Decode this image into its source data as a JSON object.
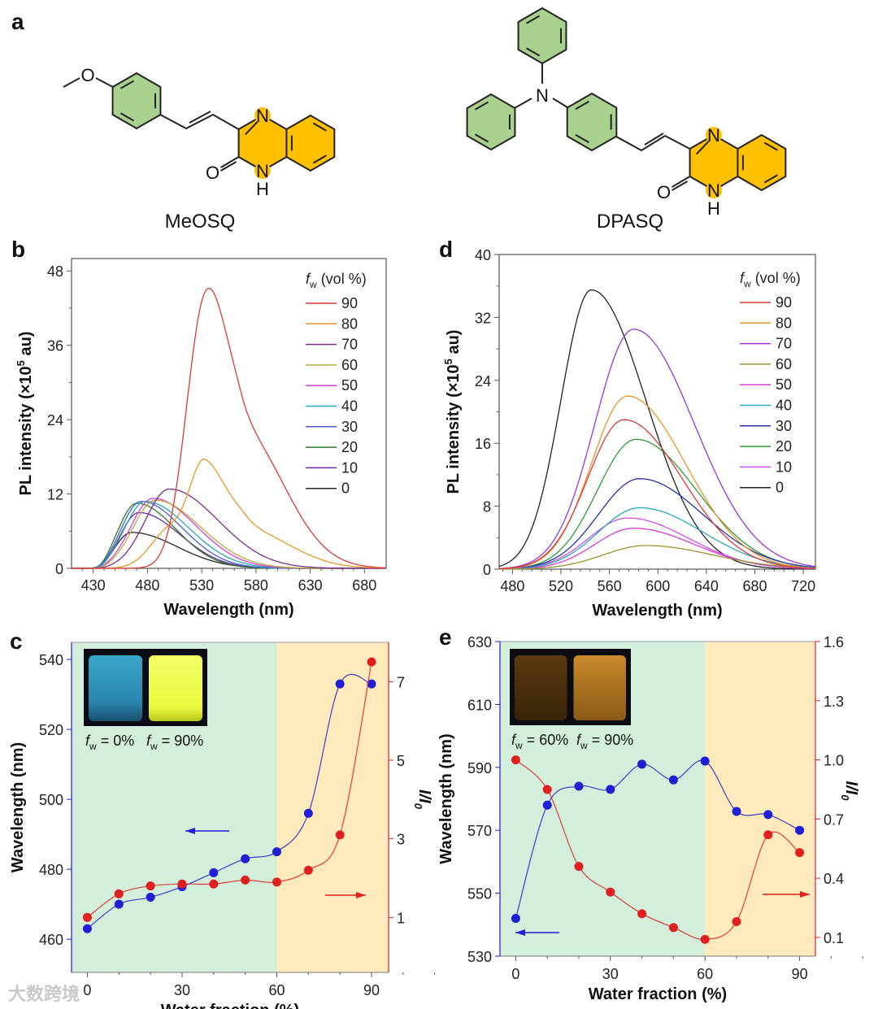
{
  "panels": {
    "a": "a",
    "b": "b",
    "c": "c",
    "d": "d",
    "e": "e"
  },
  "structures": {
    "left_name": "MeOSQ",
    "right_name": "DPASQ",
    "atoms": {
      "N": "N",
      "O": "O",
      "H": "H"
    },
    "colors": {
      "phenyl": "#a9d18e",
      "quinoxalinone": "#ffc000"
    }
  },
  "watermark": "大数跨境",
  "chart_data": [
    {
      "id": "b",
      "type": "line",
      "xlabel": "Wavelength (nm)",
      "ylabel": {
        "pre": "PL intensity (×10",
        "sup": "5",
        "post": " au)"
      },
      "xlim": [
        410,
        700
      ],
      "ylim": [
        0,
        50
      ],
      "xticks": [
        430,
        480,
        530,
        580,
        630,
        680
      ],
      "yticks": [
        0,
        12,
        24,
        36,
        48
      ],
      "legend": {
        "title_f": "f",
        "title_sub": "w",
        "title_rest": " (vol %)",
        "placement": "top-right"
      },
      "series": [
        {
          "name": "90",
          "color": "#d93a3a",
          "components": [
            [
              532,
              39,
              17,
              18
            ],
            [
              566,
              22,
              20,
              40
            ]
          ]
        },
        {
          "name": "80",
          "color": "#e8962a",
          "components": [
            [
              533,
              13.5,
              13,
              20
            ],
            [
              502,
              6.5,
              18,
              28
            ],
            [
              572,
              6,
              18,
              40
            ]
          ]
        },
        {
          "name": "70",
          "color": "#7a2e8a",
          "components": [
            [
              500,
              12.8,
              22,
              45
            ]
          ]
        },
        {
          "name": "60",
          "color": "#b5ae3e",
          "components": [
            [
              487,
              11,
              20,
              42
            ]
          ]
        },
        {
          "name": "50",
          "color": "#d63cd6",
          "components": [
            [
              485,
              11.3,
              20,
              40
            ]
          ]
        },
        {
          "name": "40",
          "color": "#25aabb",
          "components": [
            [
              478,
              10.8,
              19,
              40
            ]
          ]
        },
        {
          "name": "30",
          "color": "#4a5fd6",
          "components": [
            [
              474,
              10.8,
              18,
              38
            ]
          ]
        },
        {
          "name": "20",
          "color": "#2a7a2a",
          "components": [
            [
              470,
              10.5,
              17,
              36
            ]
          ]
        },
        {
          "name": "10",
          "color": "#6a2aa6",
          "components": [
            [
              472,
              9,
              17,
              38
            ]
          ]
        },
        {
          "name": "0",
          "color": "#222222",
          "components": [
            [
              465,
              5.8,
              15,
              42
            ]
          ]
        }
      ]
    },
    {
      "id": "d",
      "type": "line",
      "xlabel": "Wavelength (nm)",
      "ylabel": {
        "pre": "PL intensity (×10",
        "sup": "5",
        "post": " au)"
      },
      "xlim": [
        469,
        730
      ],
      "ylim": [
        0,
        40
      ],
      "xticks": [
        480,
        520,
        560,
        600,
        640,
        680,
        720
      ],
      "yticks": [
        0,
        8,
        16,
        24,
        32,
        40
      ],
      "legend": {
        "title_f": "f",
        "title_sub": "w",
        "title_rest": " (vol %)",
        "placement": "top-right"
      },
      "series": [
        {
          "name": "90",
          "color": "#d93a3a",
          "components": [
            [
              572,
              19,
              30,
              48
            ]
          ]
        },
        {
          "name": "80",
          "color": "#e8962a",
          "components": [
            [
              575,
              22,
              30,
              48
            ]
          ]
        },
        {
          "name": "70",
          "color": "#9a35d0",
          "components": [
            [
              580,
              30.5,
              32,
              50
            ]
          ]
        },
        {
          "name": "60",
          "color": "#9a9230",
          "components": [
            [
              590,
              3,
              35,
              55
            ]
          ]
        },
        {
          "name": "50",
          "color": "#d63cd6",
          "components": [
            [
              580,
              5.2,
              32,
              50
            ]
          ]
        },
        {
          "name": "40",
          "color": "#25aabb",
          "components": [
            [
              585,
              7.8,
              34,
              52
            ]
          ]
        },
        {
          "name": "30",
          "color": "#2432a8",
          "components": [
            [
              585,
              11.5,
              34,
              52
            ]
          ]
        },
        {
          "name": "20",
          "color": "#2f9a3a",
          "components": [
            [
              582,
              16.5,
              32,
              50
            ]
          ]
        },
        {
          "name": "10",
          "color": "#d44ee6",
          "components": [
            [
              575,
              6.5,
              32,
              50
            ]
          ]
        },
        {
          "name": "0",
          "color": "#222222",
          "components": [
            [
              545,
              35.5,
              25,
              45
            ]
          ]
        }
      ]
    },
    {
      "id": "c",
      "type": "scatter",
      "xlabel": "Water fraction (%)",
      "ylabel_left": "Wavelength (nm)",
      "ylabel_right": {
        "main": "I/I",
        "sub": "0"
      },
      "xlim": [
        -5,
        95.4
      ],
      "ylim_left": [
        450.5,
        544.9
      ],
      "ylim_right": [
        -0.4,
        8.0
      ],
      "xticks": [
        0,
        30,
        60,
        90
      ],
      "yticks_left": [
        460,
        480,
        500,
        520,
        540
      ],
      "yticks_right": [
        1,
        3,
        5,
        7
      ],
      "shade_split": 60,
      "colors": {
        "left": "#1f1fd6",
        "right": "#e01f1f",
        "shade_low": "#d3eedb",
        "shade_high": "#feeabb"
      },
      "x": [
        0,
        10,
        20,
        30,
        40,
        50,
        60,
        70,
        80,
        90
      ],
      "series": [
        {
          "name": "Wavelength",
          "axis": "left",
          "values": [
            463,
            470,
            472,
            475,
            479,
            483,
            485,
            496,
            533,
            533
          ]
        },
        {
          "name": "I/I0",
          "axis": "right",
          "values": [
            1.0,
            1.6,
            1.8,
            1.85,
            1.85,
            1.95,
            1.9,
            2.2,
            3.1,
            7.5
          ]
        }
      ],
      "inset": {
        "left_f": "f",
        "left_sub": "w",
        "left_rest": " = 0%",
        "right_f": "f",
        "right_sub": "w",
        "right_rest": " = 90%"
      }
    },
    {
      "id": "e",
      "type": "scatter",
      "xlabel": "Water fraction (%)",
      "ylabel_left": "Wavelength (nm)",
      "ylabel_right": {
        "main": "I/I",
        "sub": "0"
      },
      "xlim": [
        -5,
        95
      ],
      "ylim_left": [
        530,
        630
      ],
      "ylim_right": [
        0.005,
        1.6
      ],
      "xticks": [
        0,
        30,
        60,
        90
      ],
      "yticks_left": [
        530,
        550,
        570,
        590,
        610,
        630
      ],
      "yticks_right": [
        "0.1",
        "0.4",
        "0.7",
        "1.0",
        "1.3",
        "1.6"
      ],
      "shade_split": 60,
      "colors": {
        "left": "#1f1fd6",
        "right": "#e01f1f",
        "shade_low": "#d3eedb",
        "shade_high": "#feeabb"
      },
      "x": [
        0,
        10,
        20,
        30,
        40,
        50,
        60,
        70,
        80,
        90
      ],
      "series": [
        {
          "name": "Wavelength",
          "axis": "left",
          "values": [
            542,
            578,
            584,
            583,
            591,
            586,
            592,
            576,
            575,
            570
          ]
        },
        {
          "name": "I/I0",
          "axis": "right",
          "values": [
            1.0,
            0.85,
            0.46,
            0.33,
            0.22,
            0.15,
            0.09,
            0.18,
            0.62,
            0.53
          ]
        }
      ],
      "inset": {
        "left_f": "f",
        "left_sub": "w",
        "left_rest": " = 60%",
        "right_f": "f",
        "right_sub": "w",
        "right_rest": " = 90%"
      }
    }
  ]
}
